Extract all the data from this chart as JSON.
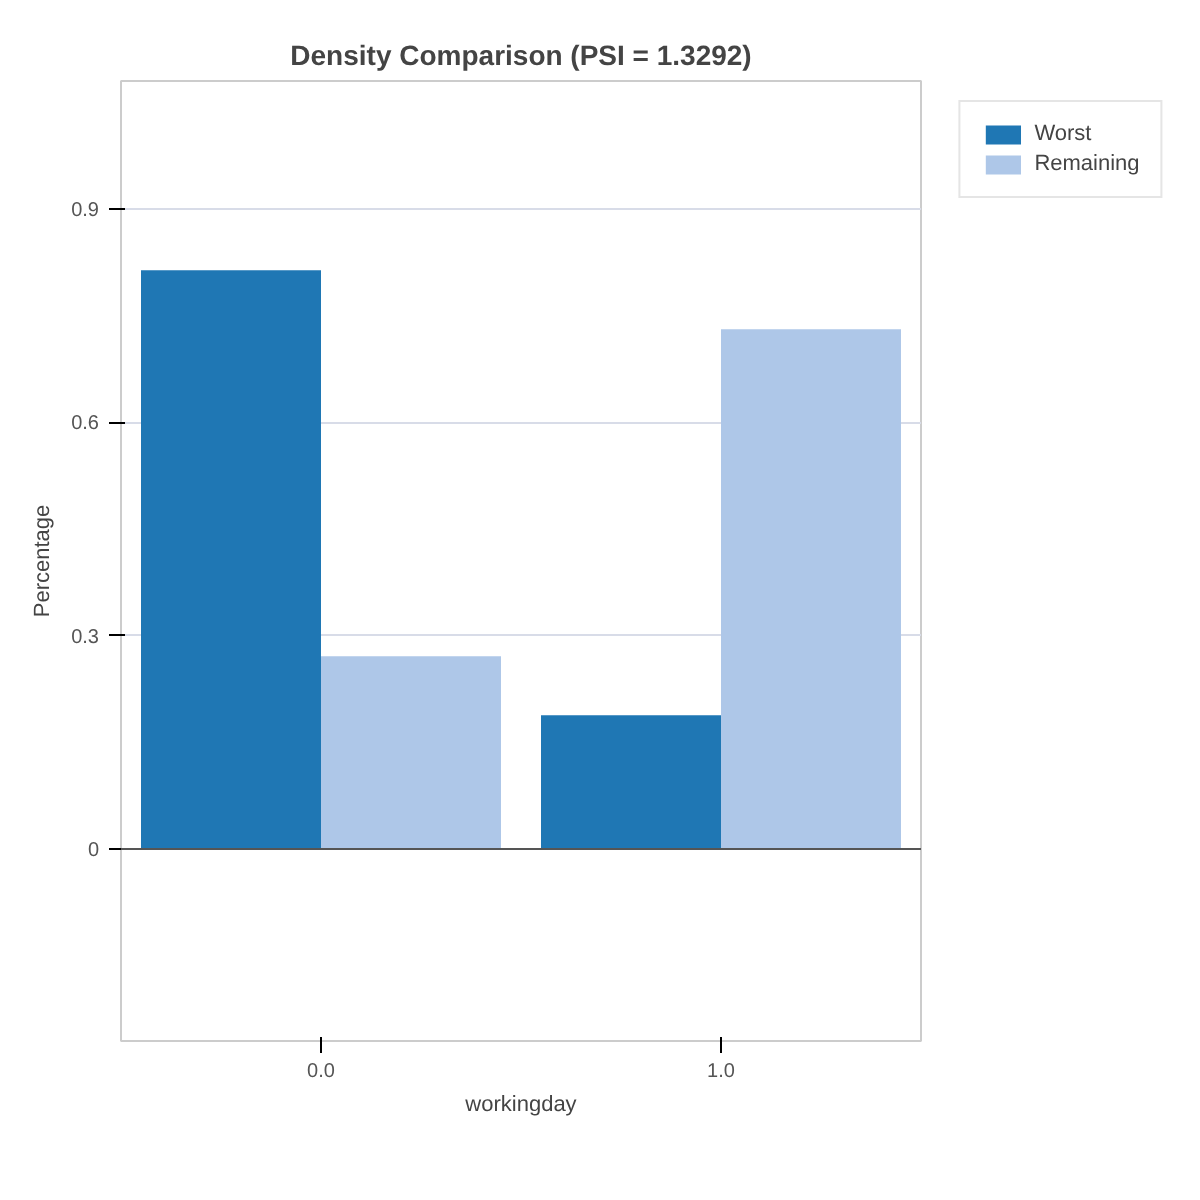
{
  "chart_data": {
    "type": "bar",
    "title": "Density Comparison (PSI = 1.3292)",
    "xlabel": "workingday",
    "ylabel": "Percentage",
    "categories": [
      "0.0",
      "1.0"
    ],
    "series": [
      {
        "name": "Worst",
        "color": "#1f77b4",
        "values": [
          0.814,
          0.188
        ]
      },
      {
        "name": "Remaining",
        "color": "#aec7e8",
        "values": [
          0.271,
          0.731
        ]
      }
    ],
    "ylim": [
      -0.27,
      1.08
    ],
    "yticks": [
      0,
      0.3,
      0.6,
      0.9
    ],
    "grid": "y",
    "legend": "top right"
  }
}
